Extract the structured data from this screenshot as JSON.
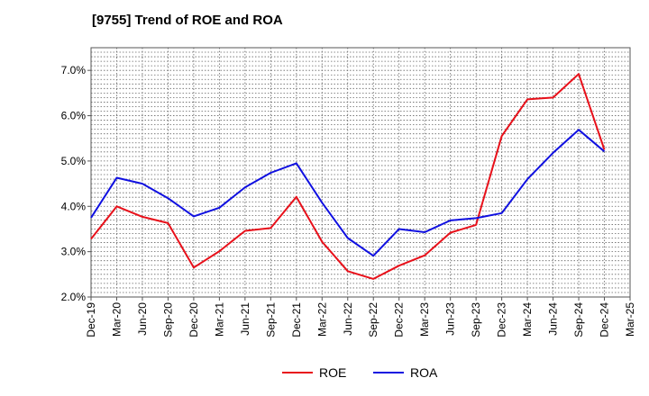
{
  "chart_data": {
    "type": "line",
    "title": "[9755]  Trend of ROE and ROA",
    "xlabel": "",
    "ylabel": "",
    "categories": [
      "Dec-19",
      "Mar-20",
      "Jun-20",
      "Sep-20",
      "Dec-20",
      "Mar-21",
      "Jun-21",
      "Sep-21",
      "Dec-21",
      "Mar-22",
      "Jun-22",
      "Sep-22",
      "Dec-22",
      "Mar-23",
      "Jun-23",
      "Sep-23",
      "Dec-23",
      "Mar-24",
      "Jun-24",
      "Sep-24",
      "Dec-24",
      "Mar-25"
    ],
    "ylim": [
      2.0,
      7.5
    ],
    "yticks": [
      2.0,
      3.0,
      4.0,
      5.0,
      6.0,
      7.0
    ],
    "ytick_labels": [
      "2.0%",
      "3.0%",
      "4.0%",
      "5.0%",
      "6.0%",
      "7.0%"
    ],
    "grid": true,
    "legend_position": "bottom",
    "series": [
      {
        "name": "ROE",
        "color": "#e8101a",
        "values": [
          3.28,
          4.0,
          3.77,
          3.63,
          2.65,
          3.01,
          3.46,
          3.52,
          4.21,
          3.22,
          2.57,
          2.4,
          2.69,
          2.92,
          3.42,
          3.59,
          5.55,
          6.36,
          6.4,
          6.92,
          5.25,
          null
        ]
      },
      {
        "name": "ROA",
        "color": "#1010e0",
        "values": [
          3.75,
          4.63,
          4.5,
          4.18,
          3.78,
          3.97,
          4.42,
          4.74,
          4.95,
          4.08,
          3.3,
          2.91,
          3.5,
          3.43,
          3.69,
          3.74,
          3.85,
          4.6,
          5.18,
          5.69,
          5.21,
          null
        ]
      }
    ]
  }
}
